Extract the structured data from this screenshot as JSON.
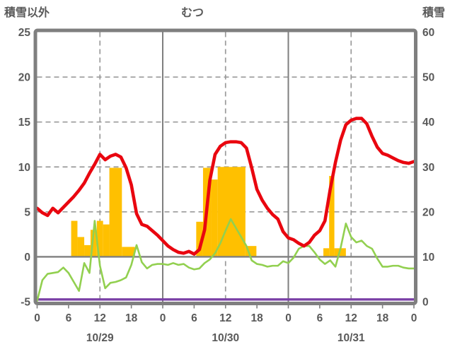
{
  "chart_data": {
    "type": "line",
    "title": "むつ",
    "x_unit": "hour",
    "x_range": [
      0,
      72
    ],
    "left_axis": {
      "title": "積雪以外",
      "ticks": [
        25,
        20,
        15,
        10,
        5,
        0,
        -5
      ],
      "range": [
        -5,
        25
      ]
    },
    "right_axis": {
      "title": "積雪",
      "ticks": [
        60,
        50,
        40,
        30,
        20,
        10,
        0
      ],
      "range": [
        0,
        60
      ]
    },
    "x_axis": {
      "tick_interval_hours": 6,
      "tick_labels": [
        "0",
        "6",
        "12",
        "18",
        "0",
        "6",
        "12",
        "18",
        "0",
        "6",
        "12",
        "18",
        "0"
      ],
      "date_labels": [
        {
          "label": "10/29",
          "center_hour": 12
        },
        {
          "label": "10/30",
          "center_hour": 36
        },
        {
          "label": "10/31",
          "center_hour": 60
        }
      ]
    },
    "gridlines": {
      "dashed_horizontal_values": [
        20,
        15,
        10,
        5
      ],
      "solid_horizontal_values": [
        0
      ],
      "dashed_vertical_hours": [
        12,
        36,
        60
      ],
      "solid_vertical_hours": [
        24,
        48
      ]
    },
    "bars": {
      "name": "precipitation",
      "axis": "left",
      "color": "#ffc000",
      "segments": [
        [
          6.5,
          7.7,
          4.0
        ],
        [
          7.7,
          9.0,
          2.2
        ],
        [
          9.0,
          10.2,
          1.3
        ],
        [
          10.2,
          11.4,
          3.0
        ],
        [
          11.4,
          12.6,
          4.0
        ],
        [
          12.6,
          13.8,
          3.6
        ],
        [
          13.8,
          16.2,
          9.9
        ],
        [
          16.2,
          18.7,
          1.1
        ],
        [
          30.4,
          31.7,
          3.9
        ],
        [
          31.7,
          33.2,
          9.9
        ],
        [
          33.2,
          34.5,
          8.6
        ],
        [
          34.5,
          39.8,
          10.0
        ],
        [
          39.8,
          41.9,
          1.2
        ],
        [
          54.7,
          55.8,
          0.95
        ],
        [
          55.8,
          56.8,
          9.0
        ],
        [
          56.8,
          59.0,
          0.95
        ]
      ]
    },
    "series": [
      {
        "name": "temperature",
        "axis": "left",
        "color": "#e9060f",
        "width": 4.6,
        "values": [
          5.4,
          4.9,
          4.6,
          5.4,
          4.9,
          5.5,
          6.1,
          6.7,
          7.4,
          8.2,
          9.3,
          10.3,
          11.4,
          10.8,
          11.2,
          11.4,
          11.1,
          9.9,
          8.0,
          4.8,
          3.6,
          3.4,
          2.9,
          2.4,
          1.8,
          1.2,
          0.8,
          0.5,
          0.4,
          0.6,
          0.3,
          0.8,
          3.0,
          8.5,
          11.4,
          12.3,
          12.7,
          12.8,
          12.8,
          12.7,
          12.1,
          9.9,
          7.5,
          6.3,
          5.4,
          4.7,
          4.2,
          2.8,
          2.1,
          1.9,
          1.5,
          1.2,
          1.6,
          2.4,
          2.9,
          4.0,
          7.5,
          10.5,
          13.0,
          14.7,
          15.2,
          15.4,
          15.4,
          14.8,
          13.4,
          12.2,
          11.5,
          11.3,
          11.0,
          10.7,
          10.5,
          10.4,
          10.6
        ]
      },
      {
        "name": "wind",
        "axis": "left",
        "color": "#92d050",
        "width": 2.6,
        "values": [
          -4.9,
          -2.6,
          -1.9,
          -1.8,
          -1.7,
          -1.2,
          -1.8,
          -2.8,
          -3.8,
          -0.7,
          -1.8,
          4.0,
          -1.0,
          -3.5,
          -2.9,
          -2.8,
          -2.6,
          -2.3,
          -0.9,
          1.3,
          -0.6,
          -1.3,
          -0.9,
          -0.8,
          -0.8,
          -0.9,
          -0.7,
          -0.9,
          -0.8,
          -1.2,
          -1.4,
          -1.3,
          -0.7,
          -0.3,
          0.4,
          1.5,
          2.9,
          4.2,
          3.2,
          2.2,
          1.2,
          -0.4,
          -0.8,
          -0.9,
          -1.1,
          -1.0,
          -1.0,
          -0.5,
          -0.7,
          -0.1,
          0.9,
          1.2,
          1.2,
          0.5,
          -0.3,
          -0.8,
          -0.4,
          -1.1,
          1.0,
          3.7,
          2.2,
          1.6,
          1.8,
          1.2,
          0.9,
          -0.2,
          -1.1,
          -1.1,
          -1.0,
          -1.0,
          -1.2,
          -1.3,
          -1.3
        ]
      },
      {
        "name": "snow-depth",
        "axis": "right",
        "color": "#7a3fa6",
        "width": 3.4,
        "constant_value": 0.5
      }
    ],
    "colors": {
      "frame": "#7f7f7f",
      "gridline": "#9a9a9a",
      "zero_line": "#7f7f7f",
      "text": "#595959",
      "background": "#ffffff"
    }
  }
}
